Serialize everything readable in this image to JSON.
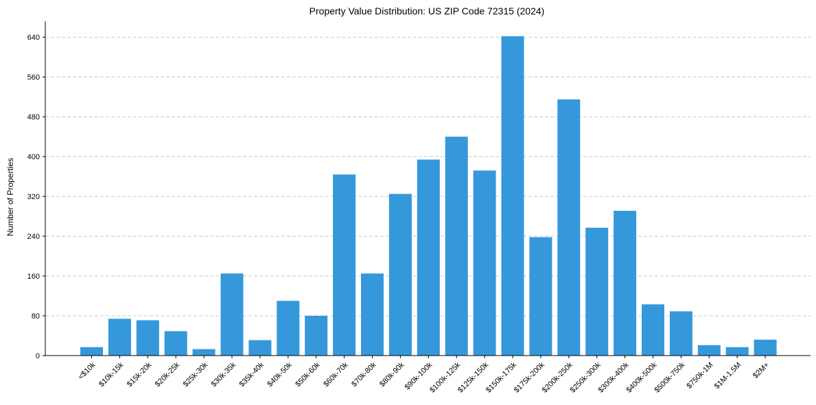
{
  "chart_data": {
    "type": "bar",
    "title": "Property Value Distribution: US ZIP Code 72315 (2024)",
    "xlabel": "",
    "ylabel": "Number of Properties",
    "ylim": [
      0,
      672
    ],
    "yticks": [
      0,
      80,
      160,
      240,
      320,
      400,
      480,
      560,
      640
    ],
    "grid": "y-dashed",
    "bar_color": "#3498db",
    "categories": [
      "<$10k",
      "$10k-15k",
      "$15k-20k",
      "$20k-25k",
      "$25k-30k",
      "$30k-35k",
      "$35k-40k",
      "$40k-50k",
      "$50k-60k",
      "$60k-70k",
      "$70k-80k",
      "$80k-90k",
      "$90k-100k",
      "$100k-125k",
      "$125k-150k",
      "$150k-175k",
      "$175k-200k",
      "$200k-250k",
      "$250k-300k",
      "$300k-400k",
      "$400k-500k",
      "$500k-750k",
      "$750k-1M",
      "$1M-1.5M",
      "$2M+"
    ],
    "values": [
      17,
      74,
      71,
      49,
      13,
      165,
      31,
      110,
      80,
      364,
      165,
      325,
      394,
      440,
      372,
      642,
      238,
      515,
      257,
      291,
      103,
      89,
      21,
      17,
      32
    ]
  }
}
